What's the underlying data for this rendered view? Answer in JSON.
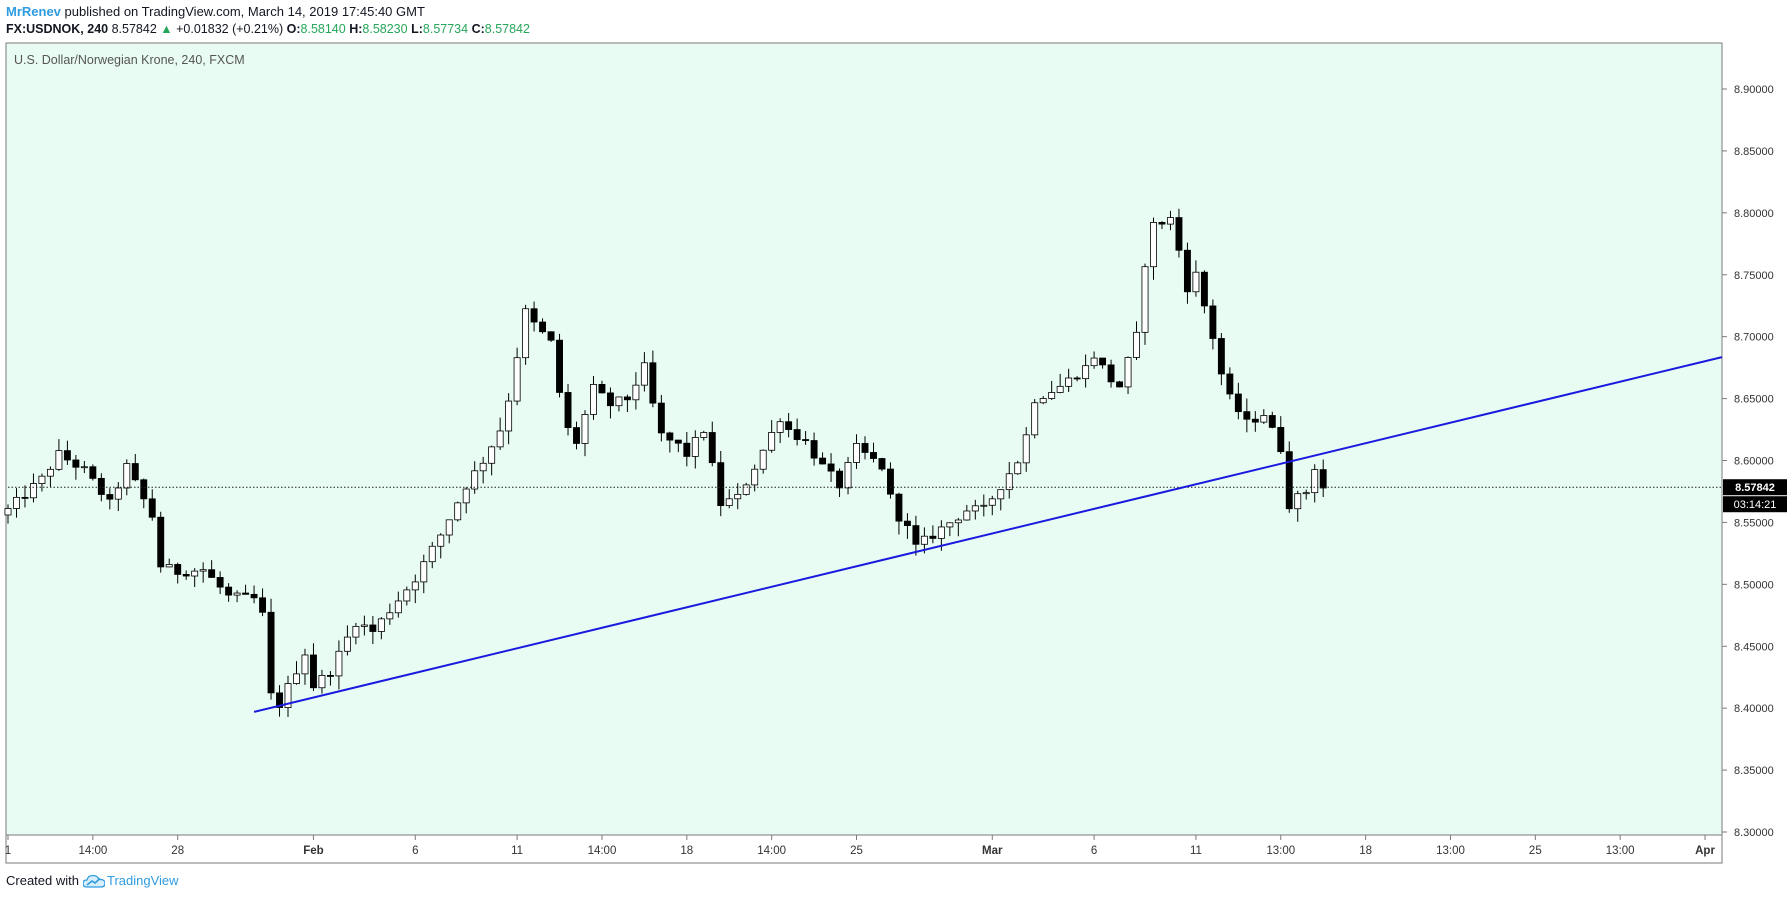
{
  "header": {
    "author": "MrRenev",
    "published_text": "published on TradingView.com, March 14, 2019 17:45:40 GMT"
  },
  "quote": {
    "symbol": "FX:USDNOK, 240",
    "last": "8.57842",
    "change_arrow": "▲",
    "change": "+0.01832 (+0.21%)",
    "open_label": "O:",
    "open": "8.58140",
    "high_label": "H:",
    "high": "8.58230",
    "low_label": "L:",
    "low": "8.57734",
    "close_label": "C:",
    "close": "8.57842"
  },
  "footer": {
    "created_with": "Created with",
    "brand": "TradingView",
    "logo_icon": "tradingview-cloud-icon"
  },
  "colors": {
    "background": "#e9fcf3",
    "trendline": "#1a1adf",
    "candle_up": "#ffffff",
    "candle_down": "#000000",
    "candle_outline": "#000000",
    "price_tag_bg": "#000000",
    "author": "#2f9ce0",
    "positive": "#26a65b"
  },
  "chart_data": {
    "type": "candlestick",
    "title": "U.S. Dollar/Norwegian Krone, 240, FXCM",
    "y_axis": {
      "min": 8.3,
      "max": 8.9,
      "position": "right",
      "ticks": [
        "8.30000",
        "8.35000",
        "8.40000",
        "8.45000",
        "8.50000",
        "8.55000",
        "8.60000",
        "8.65000",
        "8.70000",
        "8.75000",
        "8.80000",
        "8.85000",
        "8.90000"
      ]
    },
    "x_axis": {
      "ticks": [
        {
          "label": "1",
          "t": 0
        },
        {
          "label": "14:00",
          "t": 10
        },
        {
          "label": "28",
          "t": 20
        },
        {
          "label": "Feb",
          "t": 36,
          "bold": true
        },
        {
          "label": "6",
          "t": 48
        },
        {
          "label": "11",
          "t": 60
        },
        {
          "label": "14:00",
          "t": 70
        },
        {
          "label": "18",
          "t": 80
        },
        {
          "label": "14:00",
          "t": 90
        },
        {
          "label": "25",
          "t": 100
        },
        {
          "label": "Mar",
          "t": 116,
          "bold": true
        },
        {
          "label": "6",
          "t": 128
        },
        {
          "label": "11",
          "t": 140
        },
        {
          "label": "13:00",
          "t": 150
        },
        {
          "label": "18",
          "t": 160
        },
        {
          "label": "13:00",
          "t": 170
        },
        {
          "label": "25",
          "t": 180
        },
        {
          "label": "13:00",
          "t": 190
        },
        {
          "label": "Apr",
          "t": 200,
          "bold": true
        }
      ]
    },
    "last_price": {
      "value": 8.57842,
      "label": "8.57842",
      "countdown": "03:14:21"
    },
    "trendline": {
      "from": {
        "t": 29,
        "price": 8.397
      },
      "to": {
        "t": 202,
        "price": 8.6835
      }
    },
    "anchors": [
      [
        0,
        8.56
      ],
      [
        4,
        8.585
      ],
      [
        6,
        8.605
      ],
      [
        9,
        8.592
      ],
      [
        12,
        8.565
      ],
      [
        14,
        8.595
      ],
      [
        17,
        8.555
      ],
      [
        18,
        8.515
      ],
      [
        20,
        8.51
      ],
      [
        23,
        8.512
      ],
      [
        26,
        8.49
      ],
      [
        29,
        8.488
      ],
      [
        30,
        8.475
      ],
      [
        31,
        8.41
      ],
      [
        32,
        8.403
      ],
      [
        35,
        8.445
      ],
      [
        36,
        8.418
      ],
      [
        38,
        8.43
      ],
      [
        41,
        8.47
      ],
      [
        43,
        8.462
      ],
      [
        46,
        8.488
      ],
      [
        48,
        8.505
      ],
      [
        51,
        8.54
      ],
      [
        54,
        8.58
      ],
      [
        56,
        8.6
      ],
      [
        58,
        8.625
      ],
      [
        59,
        8.65
      ],
      [
        61,
        8.72
      ],
      [
        62,
        8.71
      ],
      [
        64,
        8.695
      ],
      [
        65,
        8.655
      ],
      [
        66,
        8.625
      ],
      [
        67,
        8.615
      ],
      [
        69,
        8.658
      ],
      [
        71,
        8.645
      ],
      [
        73,
        8.65
      ],
      [
        75,
        8.675
      ],
      [
        76,
        8.645
      ],
      [
        77,
        8.62
      ],
      [
        79,
        8.612
      ],
      [
        80,
        8.605
      ],
      [
        82,
        8.625
      ],
      [
        84,
        8.565
      ],
      [
        86,
        8.57
      ],
      [
        88,
        8.595
      ],
      [
        91,
        8.635
      ],
      [
        92,
        8.625
      ],
      [
        94,
        8.615
      ],
      [
        96,
        8.595
      ],
      [
        98,
        8.58
      ],
      [
        100,
        8.61
      ],
      [
        103,
        8.595
      ],
      [
        104,
        8.57
      ],
      [
        105,
        8.555
      ],
      [
        106,
        8.545
      ],
      [
        107,
        8.53
      ],
      [
        110,
        8.545
      ],
      [
        113,
        8.56
      ],
      [
        115,
        8.56
      ],
      [
        117,
        8.58
      ],
      [
        119,
        8.6
      ],
      [
        120,
        8.62
      ],
      [
        121,
        8.65
      ],
      [
        124,
        8.66
      ],
      [
        127,
        8.675
      ],
      [
        128,
        8.685
      ],
      [
        130,
        8.665
      ],
      [
        131,
        8.66
      ],
      [
        133,
        8.7
      ],
      [
        134,
        8.76
      ],
      [
        135,
        8.79
      ],
      [
        137,
        8.795
      ],
      [
        138,
        8.77
      ],
      [
        139,
        8.74
      ],
      [
        140,
        8.75
      ],
      [
        142,
        8.7
      ],
      [
        143,
        8.67
      ],
      [
        144,
        8.65
      ],
      [
        146,
        8.63
      ],
      [
        148,
        8.638
      ],
      [
        150,
        8.61
      ],
      [
        151,
        8.565
      ],
      [
        153,
        8.575
      ],
      [
        154,
        8.595
      ],
      [
        155,
        8.578
      ]
    ]
  }
}
